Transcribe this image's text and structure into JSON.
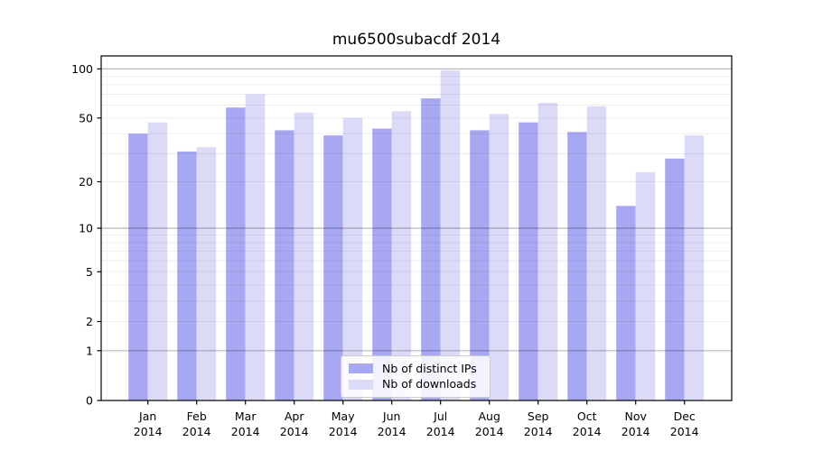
{
  "chart_data": {
    "type": "bar",
    "title": "mu6500subacdf 2014",
    "year": "2014",
    "categories": [
      "Jan",
      "Feb",
      "Mar",
      "Apr",
      "May",
      "Jun",
      "Jul",
      "Aug",
      "Sep",
      "Oct",
      "Nov",
      "Dec"
    ],
    "series": [
      {
        "name": "Nb of distinct IPs",
        "color": "#a8a8f2",
        "values": [
          40,
          31,
          58,
          42,
          39,
          43,
          66,
          42,
          47,
          41,
          14,
          28
        ]
      },
      {
        "name": "Nb of downloads",
        "color": "#dbdbf8",
        "values": [
          47,
          33,
          70,
          54,
          50,
          55,
          98,
          53,
          62,
          59,
          23,
          39
        ]
      }
    ],
    "yscale": "log1p",
    "ylim": [
      0,
      120
    ],
    "y_ticks": [
      0,
      1,
      2,
      5,
      10,
      20,
      50,
      100
    ],
    "y_major_gridlines": [
      1,
      10,
      100
    ],
    "y_minor_gridlines": [
      2,
      3,
      4,
      5,
      6,
      7,
      8,
      9,
      20,
      30,
      40,
      50,
      60,
      70,
      80,
      90
    ],
    "grid": true,
    "grid_major_color": "rgba(0,0,0,0.28)",
    "grid_minor_color": "rgba(0,0,0,0.07)",
    "axis_color": "#000000",
    "legend_position": "bottom-center"
  }
}
